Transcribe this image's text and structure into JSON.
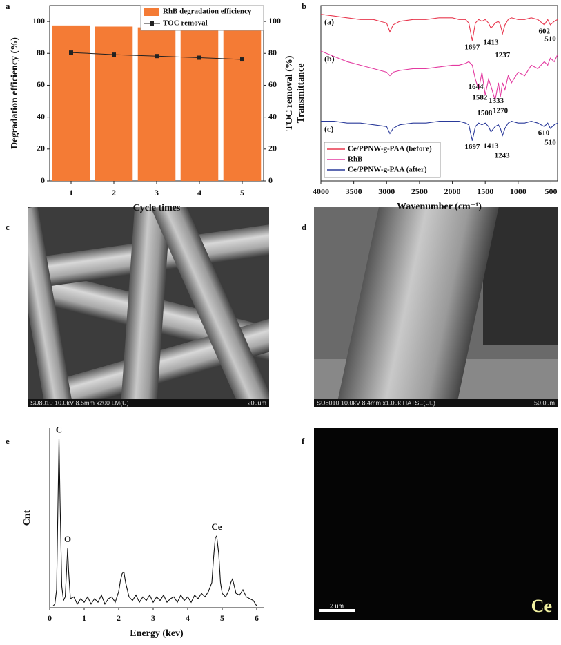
{
  "chart_data": [
    {
      "type": "bar",
      "label": "a",
      "categories": [
        "1",
        "2",
        "3",
        "4",
        "5"
      ],
      "xlabel": "Cycle times",
      "ylabel": "Degradation efficiency (%)",
      "y2label": "TOC removal (%)",
      "ylim": [
        0,
        110
      ],
      "yticks": [
        0,
        20,
        40,
        60,
        80,
        100
      ],
      "y2lim": [
        0,
        110
      ],
      "y2ticks": [
        0,
        20,
        40,
        60,
        80,
        100
      ],
      "legend": "upper right",
      "series": [
        {
          "name": "RhB degradation efficiency",
          "type": "bar",
          "color": "#f47b35",
          "values": [
            97.5,
            96.8,
            96.3,
            95.9,
            95.5
          ]
        },
        {
          "name": "TOC removal",
          "type": "line",
          "axis": "y2",
          "color": "#222222",
          "values": [
            80.5,
            79.2,
            78.3,
            77.3,
            76.2
          ]
        }
      ]
    },
    {
      "type": "line",
      "label": "b",
      "xlabel": "Wavenumber (cm⁻¹)",
      "ylabel": "Transmittance",
      "xlim": [
        4000,
        400
      ],
      "xticks": [
        4000,
        3500,
        3000,
        2500,
        2000,
        1500,
        1000,
        500
      ],
      "ylim": [
        0,
        100
      ],
      "legend": "lower left",
      "x": [
        4000,
        3800,
        3600,
        3400,
        3200,
        3000,
        2950,
        2900,
        2800,
        2600,
        2400,
        2200,
        2000,
        1900,
        1800,
        1750,
        1697,
        1650,
        1600,
        1550,
        1500,
        1450,
        1413,
        1350,
        1300,
        1270,
        1237,
        1200,
        1150,
        1100,
        1000,
        900,
        800,
        700,
        602,
        550,
        510,
        450,
        400
      ],
      "series": [
        {
          "name": "Ce/PPNW-g-PAA (before)",
          "tag": "(a)",
          "color": "#e8384f",
          "values": [
            95,
            94,
            93,
            92,
            92,
            90,
            85,
            89,
            91,
            92,
            92,
            93,
            93,
            92,
            92,
            90,
            80,
            90,
            92,
            91,
            92,
            90,
            87,
            90,
            91,
            89,
            84,
            89,
            92,
            93,
            92,
            92,
            93,
            92,
            89,
            92,
            89,
            91,
            92
          ],
          "annotations": [
            {
              "x": 1697
            },
            {
              "x": 1413
            },
            {
              "x": 1237
            },
            {
              "x": 602
            },
            {
              "x": 510
            }
          ]
        },
        {
          "name": "RhB",
          "tag": "(b)",
          "color": "#e33aa0",
          "values": [
            74,
            71,
            68,
            66,
            64,
            62,
            60,
            62,
            63,
            64,
            64,
            65,
            66,
            66,
            67,
            68,
            66,
            58,
            52,
            62,
            49,
            58,
            54,
            46,
            56,
            48,
            56,
            52,
            60,
            56,
            62,
            60,
            66,
            64,
            68,
            66,
            70,
            68,
            72
          ],
          "annotations": [
            {
              "x": 1644
            },
            {
              "x": 1582
            },
            {
              "x": 1508
            },
            {
              "x": 1333
            },
            {
              "x": 1270
            }
          ]
        },
        {
          "name": "Ce/PPNW-g-PAA (after)",
          "tag": "(c)",
          "color": "#2a3a9a",
          "values": [
            34,
            34,
            33,
            33,
            32,
            31,
            27,
            30,
            32,
            33,
            33,
            34,
            34,
            34,
            33,
            32,
            23,
            31,
            33,
            32,
            33,
            31,
            28,
            31,
            32,
            30,
            26,
            30,
            33,
            34,
            33,
            33,
            34,
            33,
            31,
            33,
            30,
            32,
            33
          ],
          "annotations": [
            {
              "x": 1697
            },
            {
              "x": 1413
            },
            {
              "x": 1243
            },
            {
              "x": 610
            },
            {
              "x": 510
            }
          ]
        }
      ]
    },
    {
      "type": "line",
      "label": "e",
      "xlabel": "Energy (kev)",
      "ylabel": "Cnt",
      "xlim": [
        0,
        6.2
      ],
      "xticks": [
        0,
        1,
        2,
        3,
        4,
        5,
        6
      ],
      "ylim": [
        0,
        100
      ],
      "x": [
        0.1,
        0.15,
        0.2,
        0.25,
        0.27,
        0.3,
        0.35,
        0.4,
        0.45,
        0.5,
        0.52,
        0.55,
        0.6,
        0.7,
        0.8,
        0.9,
        1.0,
        1.1,
        1.2,
        1.3,
        1.4,
        1.5,
        1.6,
        1.7,
        1.8,
        1.9,
        2.0,
        2.05,
        2.1,
        2.15,
        2.2,
        2.25,
        2.3,
        2.4,
        2.5,
        2.6,
        2.7,
        2.8,
        2.9,
        3.0,
        3.1,
        3.2,
        3.3,
        3.4,
        3.5,
        3.6,
        3.7,
        3.8,
        3.9,
        4.0,
        4.1,
        4.2,
        4.3,
        4.4,
        4.5,
        4.6,
        4.7,
        4.75,
        4.8,
        4.84,
        4.9,
        4.95,
        5.0,
        5.1,
        5.2,
        5.25,
        5.3,
        5.35,
        5.4,
        5.5,
        5.6,
        5.7,
        5.8,
        5.9,
        6.0
      ],
      "series": [
        {
          "color": "#111111",
          "values": [
            1,
            2,
            10,
            70,
            94,
            60,
            12,
            4,
            6,
            25,
            33,
            20,
            5,
            6,
            2,
            5,
            3,
            6,
            2,
            5,
            3,
            7,
            2,
            5,
            6,
            3,
            9,
            15,
            19,
            20,
            14,
            10,
            6,
            4,
            7,
            3,
            6,
            4,
            7,
            3,
            6,
            4,
            7,
            3,
            5,
            6,
            3,
            7,
            4,
            6,
            3,
            7,
            5,
            8,
            6,
            9,
            14,
            28,
            39,
            40,
            30,
            14,
            8,
            6,
            10,
            14,
            16,
            12,
            8,
            7,
            10,
            6,
            5,
            4,
            1
          ],
          "annotations": [
            {
              "text": "C",
              "x": 0.27
            },
            {
              "text": "O",
              "x": 0.52
            },
            {
              "text": "Ce",
              "x": 4.84
            }
          ]
        }
      ]
    }
  ],
  "images": [
    {
      "label": "c",
      "info": "SU8010 10.0kV 8.5mm x200 LM(U)",
      "scale": "200um"
    },
    {
      "label": "d",
      "info": "SU8010 10.0kV 8.4mm x1.00k HA+SE(UL)",
      "scale": "50.0um"
    },
    {
      "label": "f",
      "scale": "2 um",
      "element": "Ce"
    }
  ]
}
